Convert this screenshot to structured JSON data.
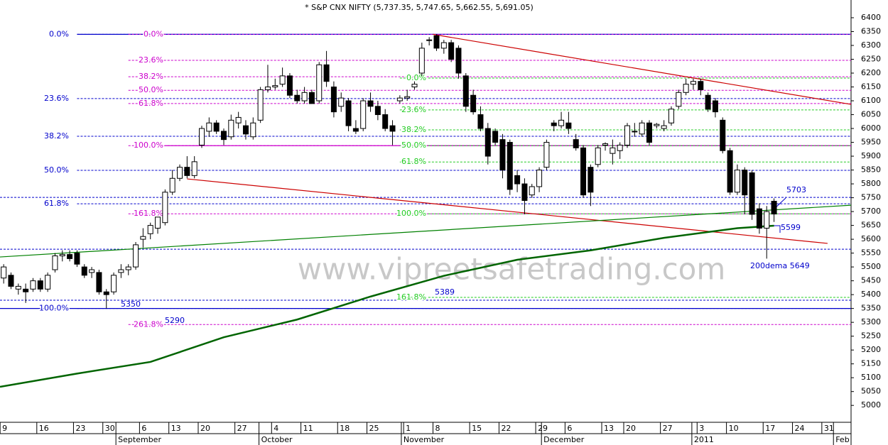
{
  "chart_data": {
    "type": "candlestick",
    "title": "* S&P CNX NIFTY (5,737.35, 5,747.65, 5,662.55, 5,691.05)",
    "watermark": "www.vipreetsafetrading.com",
    "open": [
      5460,
      5470,
      5420,
      5420,
      5420,
      5450,
      5420,
      5490,
      5540,
      5545,
      5550,
      5500,
      5480,
      5480,
      5410,
      5410,
      5480,
      5490,
      5500,
      5600,
      5620,
      5640,
      5660,
      5770,
      5820,
      5860,
      5830,
      5940,
      5990,
      6020,
      5990,
      5970,
      6020,
      6010,
      5970,
      6030,
      6140,
      6150,
      6160,
      6190,
      6120,
      6100,
      6130,
      6100,
      6230,
      6150,
      6080,
      6100,
      6000,
      6000,
      6100,
      6080,
      6050,
      6010,
      6100,
      6110,
      6150,
      6200,
      6320,
      6335,
      6290,
      6310,
      6290,
      6190,
      6120,
      6050,
      6000,
      5990,
      5960,
      5950,
      5830,
      5800,
      5760,
      5790,
      5860,
      6020,
      6010,
      6020,
      5960,
      5930,
      5860,
      5870,
      5940,
      5910,
      5920,
      5940,
      5990,
      5980,
      6020,
      6010,
      6000,
      6020,
      6080,
      6130,
      6160,
      6170,
      6120,
      6100,
      6030,
      5920,
      5770,
      5850,
      5840,
      5710,
      5640,
      5737.35
    ],
    "high": [
      5510,
      5480,
      5440,
      5440,
      5460,
      5460,
      5480,
      5550,
      5560,
      5560,
      5560,
      5510,
      5500,
      5490,
      5420,
      5480,
      5510,
      5510,
      5590,
      5640,
      5660,
      5680,
      5780,
      5850,
      5870,
      5900,
      5900,
      6010,
      6040,
      6030,
      6000,
      6050,
      6060,
      6030,
      6040,
      6150,
      6230,
      6180,
      6220,
      6200,
      6140,
      6150,
      6140,
      6240,
      6280,
      6170,
      6130,
      6110,
      6030,
      6110,
      6130,
      6100,
      6070,
      6030,
      6120,
      6140,
      6170,
      6310,
      6330,
      6340,
      6320,
      6320,
      6300,
      6200,
      6140,
      6080,
      6020,
      6000,
      5980,
      5960,
      5850,
      5820,
      5800,
      5860,
      5960,
      6030,
      6060,
      6060,
      5980,
      5940,
      5870,
      5940,
      5950,
      5960,
      5950,
      6020,
      6020,
      6030,
      6030,
      6020,
      6030,
      6080,
      6140,
      6180,
      6180,
      6180,
      6130,
      6110,
      6040,
      5930,
      5870,
      5860,
      5850,
      5730,
      5720,
      5747.65
    ],
    "low": [
      5440,
      5420,
      5400,
      5370,
      5410,
      5410,
      5410,
      5480,
      5520,
      5520,
      5500,
      5460,
      5460,
      5400,
      5350,
      5400,
      5460,
      5470,
      5490,
      5570,
      5600,
      5620,
      5650,
      5760,
      5810,
      5820,
      5820,
      5930,
      5970,
      5980,
      5940,
      5960,
      6000,
      5960,
      5960,
      6020,
      6130,
      6140,
      6150,
      6110,
      6090,
      6090,
      6090,
      6090,
      6150,
      6040,
      6060,
      5990,
      5980,
      5990,
      6060,
      6030,
      5990,
      5940,
      6090,
      6100,
      6140,
      6190,
      6300,
      6280,
      6270,
      6240,
      6180,
      6060,
      6050,
      5990,
      5870,
      5940,
      5820,
      5760,
      5770,
      5690,
      5750,
      5770,
      5850,
      5990,
      6000,
      5980,
      5920,
      5750,
      5720,
      5860,
      5920,
      5870,
      5890,
      5930,
      5970,
      5970,
      5940,
      6000,
      5990,
      6010,
      6070,
      6120,
      6140,
      6120,
      6060,
      6040,
      5910,
      5760,
      5760,
      5690,
      5670,
      5620,
      5530,
      5662.55
    ],
    "close": [
      5500,
      5430,
      5430,
      5410,
      5450,
      5420,
      5470,
      5540,
      5545,
      5530,
      5510,
      5470,
      5490,
      5410,
      5400,
      5470,
      5490,
      5500,
      5580,
      5610,
      5650,
      5680,
      5770,
      5820,
      5860,
      5830,
      5880,
      6000,
      6020,
      5990,
      5960,
      6030,
      6040,
      5980,
      6020,
      6140,
      6150,
      6155,
      6190,
      6120,
      6100,
      6130,
      6090,
      6230,
      6170,
      6060,
      6110,
      6010,
      5990,
      6100,
      6080,
      6050,
      6000,
      5990,
      6110,
      6115,
      6160,
      6290,
      6320,
      6290,
      6310,
      6250,
      6200,
      6080,
      6060,
      6000,
      5900,
      5950,
      5850,
      5780,
      5800,
      5740,
      5790,
      5850,
      5950,
      6010,
      6030,
      6000,
      5930,
      5760,
      5770,
      5930,
      5945,
      5930,
      5940,
      6010,
      5990,
      6020,
      5950,
      6015,
      6010,
      6070,
      6130,
      6160,
      6170,
      6140,
      6070,
      6060,
      5920,
      5770,
      5850,
      5760,
      5690,
      5640,
      5700,
      5691.05
    ],
    "xlim": [
      -0.5,
      115.5
    ],
    "ylim": [
      4939,
      6464
    ],
    "yticks": [
      5000,
      5050,
      5100,
      5150,
      5200,
      5250,
      5300,
      5350,
      5400,
      5450,
      5500,
      5550,
      5600,
      5650,
      5700,
      5750,
      5800,
      5850,
      5900,
      5950,
      6000,
      6050,
      6100,
      6150,
      6200,
      6250,
      6300,
      6350,
      6400
    ],
    "xticks": [
      {
        "value": 0,
        "label": "9"
      },
      {
        "value": 5,
        "label": "16"
      },
      {
        "value": 10,
        "label": "23"
      },
      {
        "value": 14,
        "label": "30"
      },
      {
        "value": 19,
        "label": "6"
      },
      {
        "value": 23,
        "label": "13"
      },
      {
        "value": 27,
        "label": "20"
      },
      {
        "value": 32,
        "label": "27"
      },
      {
        "value": 37,
        "label": "4"
      },
      {
        "value": 41,
        "label": "11"
      },
      {
        "value": 46,
        "label": "18"
      },
      {
        "value": 50,
        "label": "25"
      },
      {
        "value": 55,
        "label": "1"
      },
      {
        "value": 59,
        "label": "8"
      },
      {
        "value": 64,
        "label": "15"
      },
      {
        "value": 68,
        "label": "22"
      },
      {
        "value": 73,
        "label": "29"
      },
      {
        "value": 77,
        "label": "6"
      },
      {
        "value": 82,
        "label": "13"
      },
      {
        "value": 85,
        "label": "20"
      },
      {
        "value": 90,
        "label": "27"
      },
      {
        "value": 95,
        "label": "3"
      },
      {
        "value": 99,
        "label": "10"
      },
      {
        "value": 104,
        "label": "17"
      },
      {
        "value": 108,
        "label": "24"
      },
      {
        "value": 112,
        "label": "31"
      }
    ],
    "months": [
      {
        "value": 15.3,
        "label": "September"
      },
      {
        "value": 34.8,
        "label": "October"
      },
      {
        "value": 54.2,
        "label": "November"
      },
      {
        "value": 73.3,
        "label": "December"
      },
      {
        "value": 93.8,
        "label": "2011"
      },
      {
        "value": 113.1,
        "label": "Feb"
      }
    ],
    "fib_levels": [
      {
        "color": "#0000cc",
        "start": 10,
        "levels": [
          {
            "value": 6340,
            "label": "0.0%"
          },
          {
            "value": 6108,
            "label": "23.6%"
          },
          {
            "value": 5972,
            "label": "38.2%"
          },
          {
            "value": 5849,
            "label": "50.0%"
          },
          {
            "value": 5728,
            "label": "61.8%"
          },
          {
            "value": 5350,
            "label": "100.0%"
          }
        ]
      },
      {
        "color": "#cc00cc",
        "start": 17,
        "levels": [
          {
            "value": 6340,
            "label": "0.0%"
          },
          {
            "value": 6246,
            "label": "23.6%"
          },
          {
            "value": 6187,
            "label": "38.2%"
          },
          {
            "value": 6138,
            "label": "50.0%"
          },
          {
            "value": 6090,
            "label": "61.8%"
          },
          {
            "value": 5938,
            "label": "100.0%"
          },
          {
            "value": 5692,
            "label": "161.8%"
          },
          {
            "value": 5292,
            "label": "261.8%"
          }
        ]
      },
      {
        "color": "#22cc22",
        "start": 54,
        "levels": [
          {
            "value": 6182,
            "label": "0.0%"
          },
          {
            "value": 6067,
            "label": "23.6%"
          },
          {
            "value": 5995,
            "label": "38.2%"
          },
          {
            "value": 5938,
            "label": "50.0%"
          },
          {
            "value": 5879,
            "label": "61.8%"
          },
          {
            "value": 5692,
            "label": "100.0%"
          },
          {
            "value": 5390,
            "label": "161.8%"
          }
        ]
      }
    ],
    "hlines": [
      {
        "value": 6340,
        "color": "#0000cc",
        "start": 10,
        "style": "solid"
      },
      {
        "value": 5350,
        "color": "#0000cc",
        "start": -0.5,
        "style": "solid"
      },
      {
        "value": 5938,
        "color": "#cc00cc",
        "start": 22,
        "style": "solid"
      },
      {
        "value": 5751,
        "color": "#0000cc",
        "start": -0.5,
        "style": "dashed"
      },
      {
        "value": 5564,
        "color": "#0000cc",
        "start": -0.5,
        "style": "dashed"
      },
      {
        "value": 5380,
        "color": "#0000cc",
        "start": -0.5,
        "style": "dashed"
      }
    ],
    "trendlines": [
      {
        "color": "#cc0000",
        "x": [
          58.5,
          115.5
        ],
        "values": [
          6340,
          6087
        ]
      },
      {
        "color": "#cc0000",
        "x": [
          25,
          112.3
        ],
        "values": [
          5818,
          5585
        ]
      },
      {
        "color": "#008000",
        "x": [
          -0.5,
          115.5
        ],
        "values": [
          5536,
          5723
        ]
      }
    ],
    "dema": {
      "color": "#006400",
      "x": [
        -0.5,
        10,
        20,
        30,
        40,
        50,
        60,
        70,
        80,
        90,
        100,
        105
      ],
      "values": [
        5067,
        5115,
        5157,
        5246,
        5310,
        5393,
        5468,
        5526,
        5560,
        5605,
        5640,
        5649
      ]
    },
    "annotations": [
      "5350",
      "5290",
      "5389",
      "5703",
      "5599",
      "200dema 5649"
    ]
  }
}
